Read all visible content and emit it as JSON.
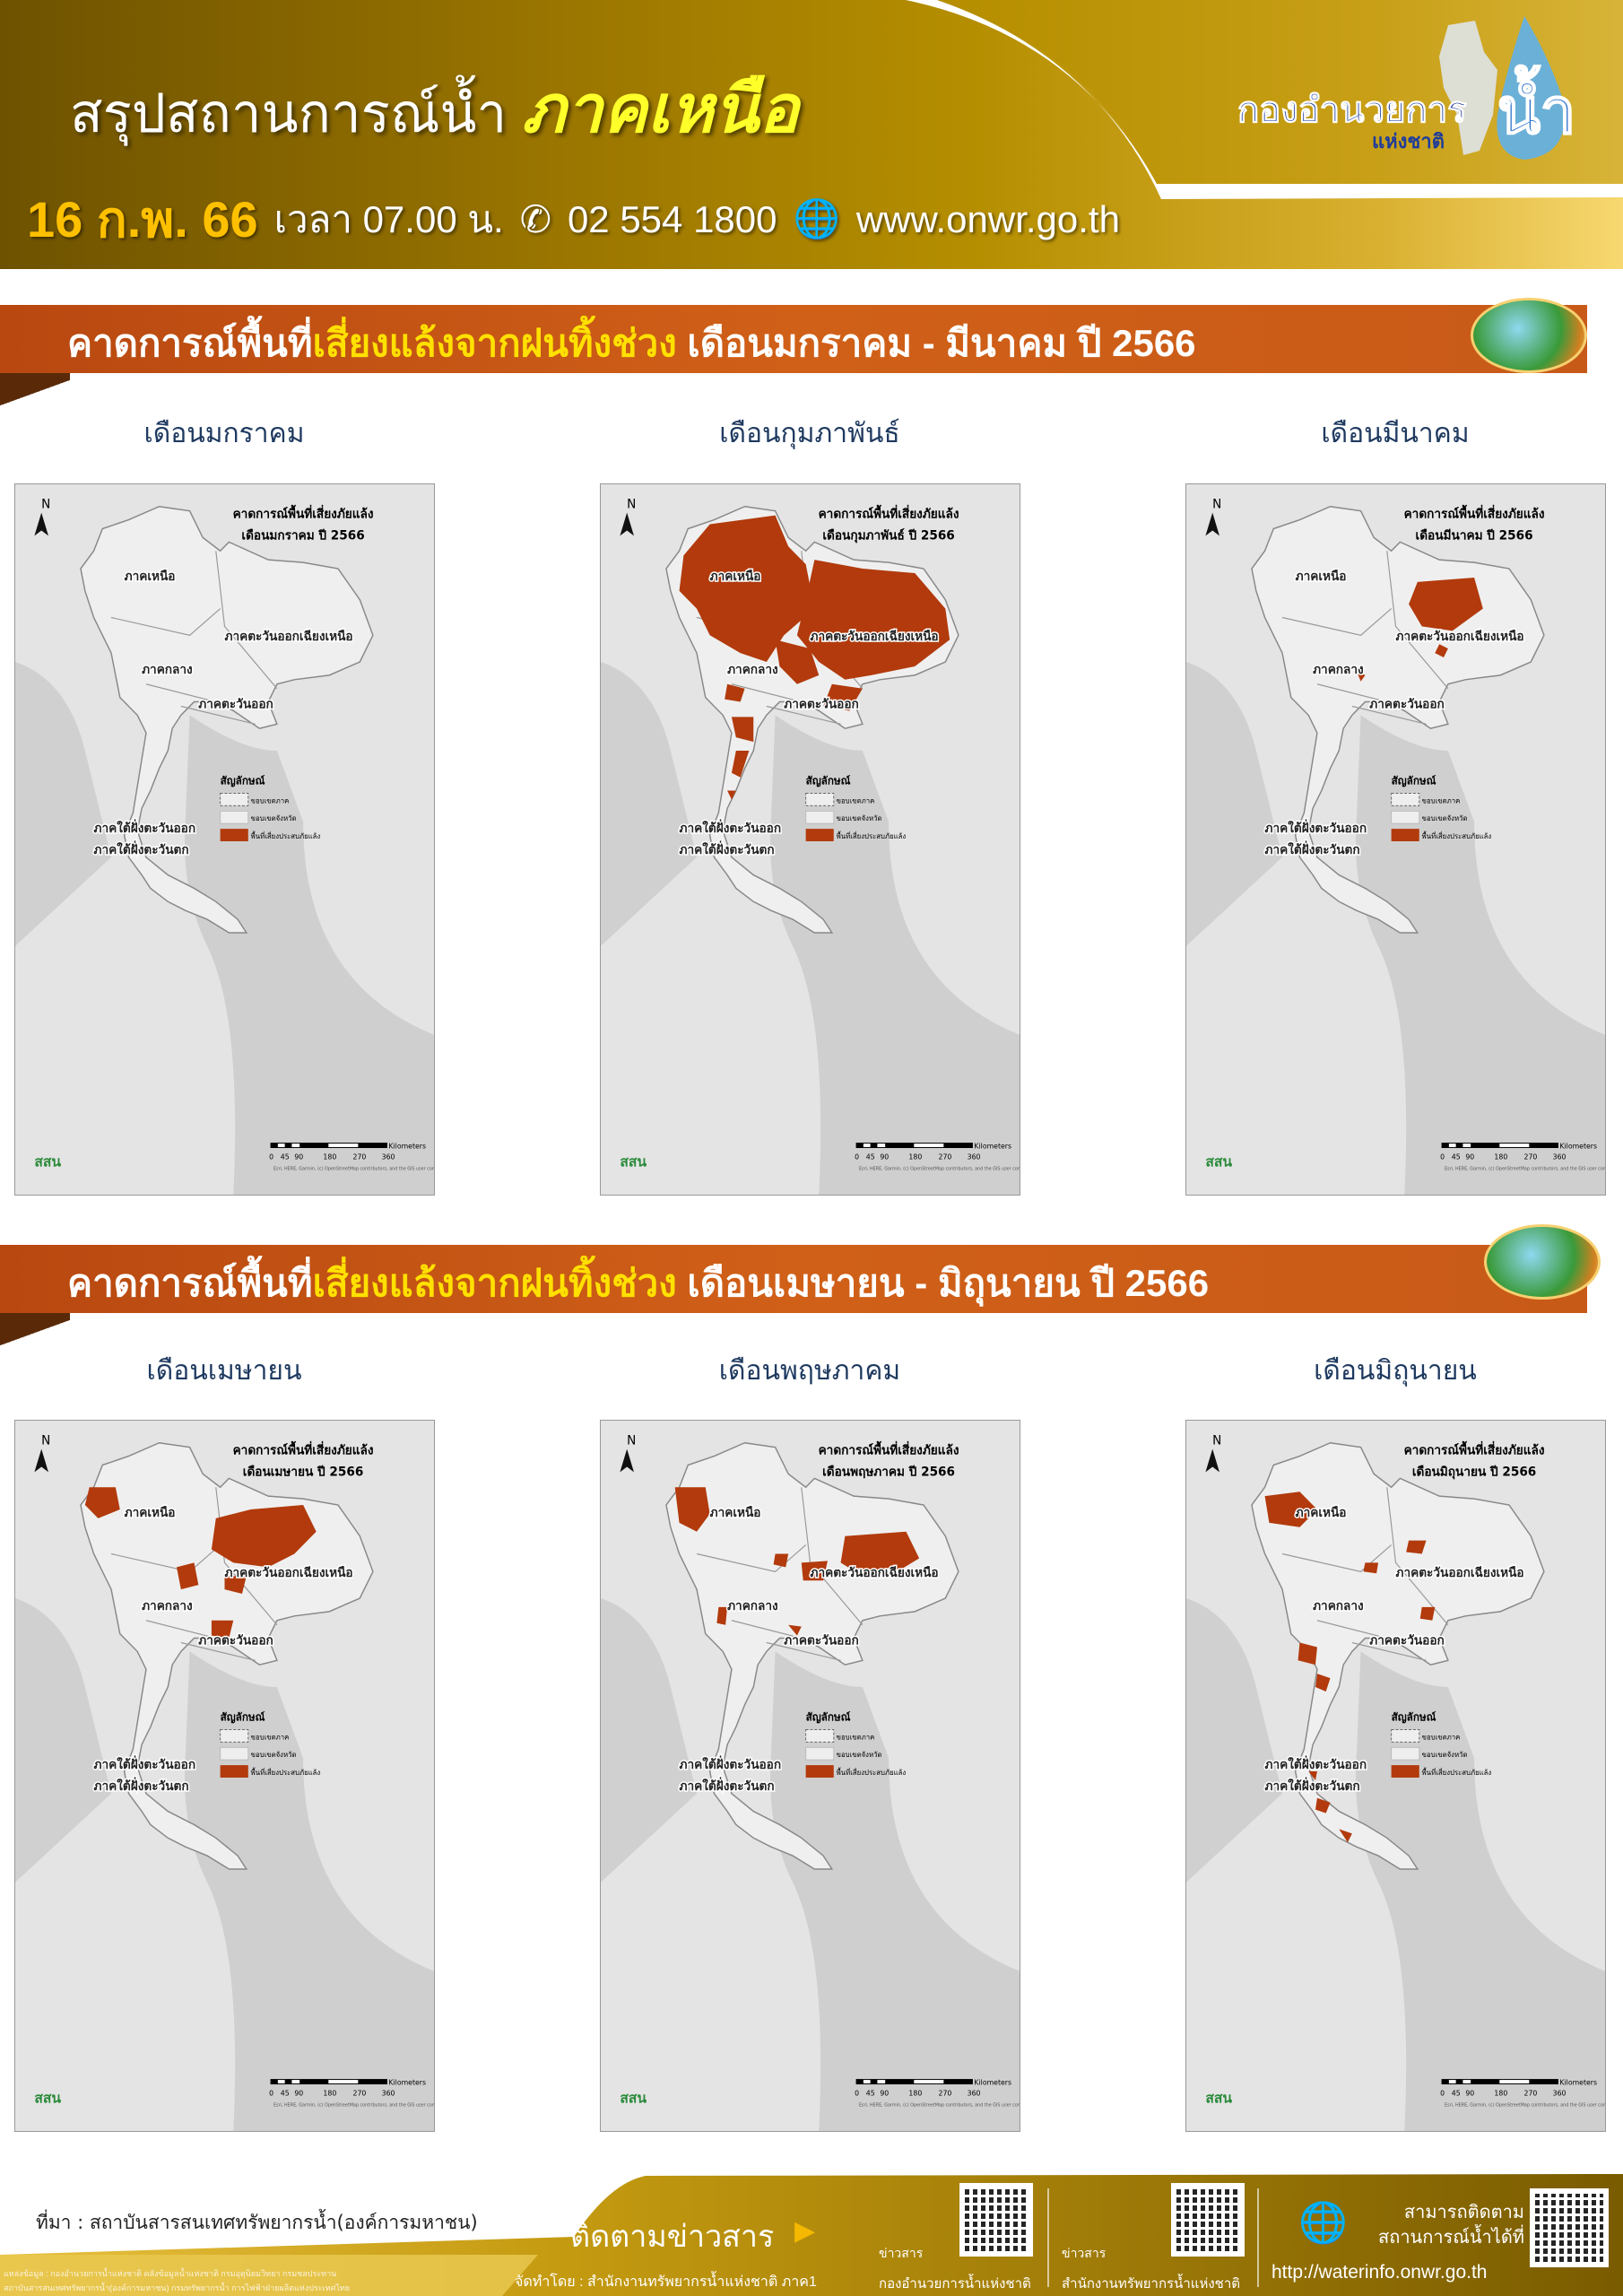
{
  "header": {
    "title_prefix": "สรุปสถานการณ์น้ำ",
    "title_region": "ภาคเหนือ",
    "date": "16 ก.พ. 66",
    "time": "เวลา 07.00 น.",
    "phone": "02 554 1800",
    "website": "www.onwr.go.th",
    "phone_icon": "phone-icon",
    "globe_icon": "globe-icon",
    "logo": {
      "line1": "กองอำนวยการ",
      "line2": "แห่งชาติ",
      "mark": "น้ำ"
    }
  },
  "sections": [
    {
      "title_a": "คาดการณ์พื้นที่",
      "title_hl": "เสี่ยงแล้งจากฝนทิ้งช่วง",
      "title_b": " เดือนมกราคม - มีนาคม ปี 2566",
      "maps": [
        {
          "label": "เดือนมกราคม",
          "map_title1": "คาดการณ์พื้นที่เสี่ยงภัยแล้ง",
          "map_title2": "เดือนมกราคม ปี 2566"
        },
        {
          "label": "เดือนกุมภาพันธ์",
          "map_title1": "คาดการณ์พื้นที่เสี่ยงภัยแล้ง",
          "map_title2": "เดือนกุมภาพันธ์ ปี 2566"
        },
        {
          "label": "เดือนมีนาคม",
          "map_title1": "คาดการณ์พื้นที่เสี่ยงภัยแล้ง",
          "map_title2": "เดือนมีนาคม ปี 2566"
        }
      ]
    },
    {
      "title_a": "คาดการณ์พื้นที่",
      "title_hl": "เสี่ยงแล้งจากฝนทิ้งช่วง",
      "title_b": " เดือนเมษายน - มิถุนายน ปี 2566",
      "maps": [
        {
          "label": "เดือนเมษายน",
          "map_title1": "คาดการณ์พื้นที่เสี่ยงภัยแล้ง",
          "map_title2": "เดือนเมษายน ปี 2566"
        },
        {
          "label": "เดือนพฤษภาคม",
          "map_title1": "คาดการณ์พื้นที่เสี่ยงภัยแล้ง",
          "map_title2": "เดือนพฤษภาคม ปี 2566"
        },
        {
          "label": "เดือนมิถุนายน",
          "map_title1": "คาดการณ์พื้นที่เสี่ยงภัยแล้ง",
          "map_title2": "เดือนมิถุนายน ปี 2566"
        }
      ]
    }
  ],
  "map_common": {
    "north": "N",
    "regions": [
      "ภาคเหนือ",
      "ภาคตะวันออกเฉียงเหนือ",
      "ภาคกลาง",
      "ภาคตะวันออก",
      "ภาคใต้ฝั่งตะวันออก",
      "ภาคใต้ฝั่งตะวันตก"
    ],
    "legend_title": "สัญลักษณ์",
    "legend": [
      "ขอบเขตภาค",
      "ขอบเขตจังหวัด",
      "พื้นที่เสี่ยงประสบภัยแล้ง"
    ],
    "scale_ticks": [
      "0",
      "45",
      "90",
      "180",
      "270",
      "360"
    ],
    "scale_unit": "Kilometers",
    "attribution": "Esri, HERE, Garmin, (c) OpenStreetMap contributors, and the GIS user community",
    "agency_logo": "สสน",
    "risk_color": "#b23a0c"
  },
  "footer": {
    "source": "ที่มา : สถาบันสารสนเทศทรัพยากรน้ำ(องค์การมหาชน)",
    "data_note1": "แหล่งข้อมูล : กองอำนวยการน้ำแห่งชาติ คลังข้อมูลน้ำแห่งชาติ กรมอุตุนิยมวิทยา กรมชลประทาน",
    "data_note2": "สถาบันสารสนเทศทรัพยากรน้ำ(องค์การมหาชน) กรมทรัพยากรน้ำ การไฟฟ้าฝ่ายผลิตแห่งประเทศไทย",
    "follow": "ติดตามข่าวสาร",
    "produced_by": "จัดทำโดย : สำนักงานทรัพยากรน้ำแห่งชาติ ภาค1",
    "qr1_label1": "ข่าวสาร",
    "qr1_label2": "กองอำนวยการน้ำแห่งชาติ",
    "qr2_label1": "ข่าวสาร",
    "qr2_label2": "สำนักงานทรัพยากรน้ำแห่งชาติ",
    "track1": "สามารถติดตาม",
    "track2": "สถานการณ์น้ำได้ที่",
    "url": "http://waterinfo.onwr.go.th"
  }
}
